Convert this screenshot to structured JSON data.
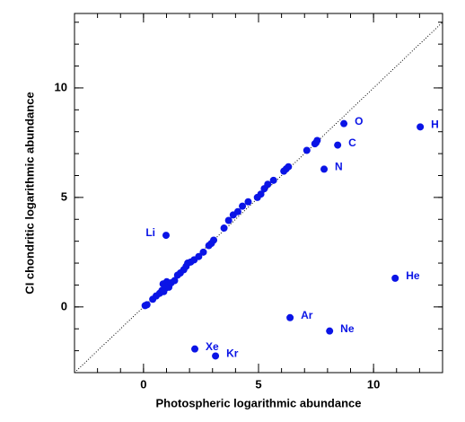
{
  "chart_data": {
    "type": "scatter",
    "x_label": "Photospheric logarithmic abundance",
    "y_label": "CI chondritic logarithmic abundance",
    "color": "#0a14e6",
    "diagonal": true,
    "xlim": [
      -3,
      13
    ],
    "ylim": [
      -3,
      13.4
    ],
    "xticks": [
      0,
      5,
      10
    ],
    "yticks": [
      0,
      5,
      10
    ],
    "x": [
      12.03,
      8.71,
      8.44,
      7.85,
      0.98,
      10.94,
      6.37,
      8.09,
      2.23,
      3.13,
      0.07,
      0.15,
      0.4,
      0.55,
      0.7,
      0.8,
      0.85,
      0.88,
      0.95,
      1.01,
      1.1,
      1.2,
      1.35,
      1.48,
      1.6,
      1.75,
      1.85,
      1.92,
      2.05,
      2.2,
      2.4,
      2.6,
      2.84,
      2.95,
      3.05,
      3.5,
      3.7,
      3.9,
      4.1,
      4.3,
      4.55,
      4.95,
      5.1,
      5.25,
      5.4,
      5.65,
      6.1,
      6.2,
      6.3,
      7.1,
      7.45,
      7.5,
      7.55
    ],
    "y": [
      8.22,
      8.37,
      7.39,
      6.29,
      3.27,
      1.31,
      -0.49,
      -1.1,
      -1.92,
      -2.24,
      0.06,
      0.1,
      0.35,
      0.5,
      0.62,
      0.75,
      1.05,
      0.7,
      0.85,
      1.15,
      0.9,
      1.1,
      1.2,
      1.45,
      1.55,
      1.7,
      1.85,
      2.0,
      2.05,
      2.15,
      2.3,
      2.5,
      2.8,
      2.9,
      3.05,
      3.6,
      3.95,
      4.2,
      4.35,
      4.6,
      4.8,
      5.0,
      5.15,
      5.4,
      5.6,
      5.78,
      6.2,
      6.3,
      6.4,
      7.15,
      7.45,
      7.5,
      7.6
    ],
    "labels": [
      "H",
      "O",
      "C",
      "N",
      "Li",
      "He",
      "Ar",
      "Ne",
      "Xe",
      "Kr",
      null,
      null,
      null,
      null,
      null,
      null,
      null,
      null,
      null,
      null,
      null,
      null,
      null,
      null,
      null,
      null,
      null,
      null,
      null,
      null,
      null,
      null,
      null,
      null,
      null,
      null,
      null,
      null,
      null,
      null,
      null,
      null,
      null,
      null,
      null,
      null,
      null,
      null,
      null,
      null,
      null,
      null,
      null
    ]
  }
}
